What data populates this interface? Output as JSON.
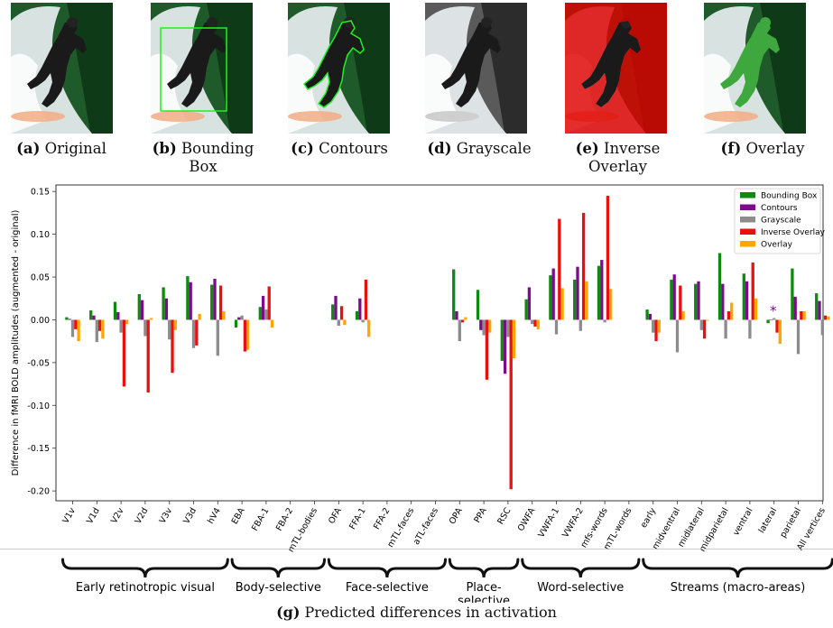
{
  "panels": [
    {
      "letter": "(a)",
      "label": "Original",
      "variant": "original"
    },
    {
      "letter": "(b)",
      "label": "Bounding Box",
      "variant": "bbox"
    },
    {
      "letter": "(c)",
      "label": "Contours",
      "variant": "contours"
    },
    {
      "letter": "(d)",
      "label": "Grayscale",
      "variant": "grayscale"
    },
    {
      "letter": "(e)",
      "label": "Inverse Overlay",
      "variant": "inverse"
    },
    {
      "letter": "(f)",
      "label": "Overlay",
      "variant": "overlay"
    }
  ],
  "caption": {
    "letter": "(g)",
    "text": "Predicted differences in activation"
  },
  "chart_data": {
    "type": "bar",
    "ylabel": "Difference in fMRI BOLD amplitudes (augmented - original)",
    "ylim": [
      -0.21,
      0.16
    ],
    "yticks": [
      "0.15",
      "0.10",
      "0.05",
      "0.00",
      "-0.05",
      "-0.10",
      "-0.15",
      "-0.20"
    ],
    "legend_position": "top-right",
    "categories": [
      "V1v",
      "V1d",
      "V2v",
      "V2d",
      "V3v",
      "V3d",
      "hV4",
      "EBA",
      "FBA-1",
      "FBA-2",
      "mTL-bodies",
      "OFA",
      "FFA-1",
      "FFA-2",
      "mTL-faces",
      "aTL-faces",
      "OPA",
      "PPA",
      "RSC",
      "OWFA",
      "VWFA-1",
      "VWFA-2",
      "mfs-words",
      "mTL-words",
      "early",
      "midventral",
      "midlateral",
      "midparietal",
      "ventral",
      "lateral",
      "parietal",
      "All vertices"
    ],
    "series": [
      {
        "name": "Bounding Box",
        "color": "#118811",
        "values": [
          0.003,
          0.011,
          0.021,
          0.03,
          0.038,
          0.051,
          0.041,
          -0.009,
          0.015,
          null,
          null,
          0.018,
          0.01,
          null,
          null,
          null,
          0.059,
          0.035,
          -0.048,
          0.024,
          0.052,
          0.047,
          0.063,
          null,
          0.012,
          0.047,
          0.042,
          0.078,
          0.054,
          -0.004,
          0.06,
          0.031
        ]
      },
      {
        "name": "Contours",
        "color": "#7b0d8a",
        "values": [
          0.001,
          0.005,
          0.009,
          0.023,
          0.025,
          0.044,
          0.048,
          0.003,
          0.028,
          null,
          null,
          0.028,
          0.025,
          null,
          null,
          null,
          0.01,
          -0.012,
          -0.063,
          0.038,
          0.06,
          0.062,
          0.07,
          null,
          0.007,
          0.053,
          0.045,
          0.042,
          0.045,
          0.0,
          0.027,
          0.022
        ]
      },
      {
        "name": "Grayscale",
        "color": "#8c8c8c",
        "values": [
          -0.02,
          -0.026,
          -0.015,
          -0.019,
          -0.023,
          -0.033,
          -0.042,
          0.005,
          0.012,
          null,
          null,
          -0.007,
          -0.003,
          null,
          null,
          null,
          -0.025,
          -0.018,
          -0.02,
          -0.005,
          -0.017,
          -0.013,
          -0.003,
          null,
          -0.015,
          -0.038,
          -0.012,
          -0.022,
          -0.022,
          0.002,
          -0.04,
          -0.018
        ]
      },
      {
        "name": "Inverse Overlay",
        "color": "#e81010",
        "values": [
          -0.011,
          -0.013,
          -0.078,
          -0.085,
          -0.062,
          -0.03,
          0.04,
          -0.037,
          0.039,
          null,
          null,
          0.016,
          0.047,
          null,
          null,
          null,
          -0.003,
          -0.07,
          -0.198,
          -0.008,
          0.118,
          0.125,
          0.145,
          null,
          -0.025,
          0.04,
          -0.022,
          0.01,
          0.067,
          -0.015,
          0.01,
          0.005
        ]
      },
      {
        "name": "Overlay",
        "color": "#ffa500",
        "values": [
          -0.025,
          -0.022,
          -0.005,
          0.002,
          -0.012,
          0.007,
          0.01,
          -0.035,
          -0.009,
          null,
          null,
          -0.006,
          -0.02,
          null,
          null,
          null,
          0.003,
          -0.015,
          -0.045,
          -0.011,
          0.037,
          0.045,
          0.036,
          null,
          -0.015,
          0.01,
          -0.001,
          0.02,
          0.025,
          -0.028,
          0.01,
          0.004
        ]
      }
    ],
    "annotations": [
      {
        "category": "lateral",
        "text": "*"
      }
    ],
    "groups": [
      {
        "label": "Early retinotropic visual",
        "from": 0,
        "to": 6
      },
      {
        "label": "Body-selective",
        "from": 7,
        "to": 10
      },
      {
        "label": "Face-selective",
        "from": 11,
        "to": 15
      },
      {
        "label": "Place-selective",
        "from": 16,
        "to": 18
      },
      {
        "label": "Word-selective",
        "from": 19,
        "to": 23
      },
      {
        "label": "Streams (macro-areas)",
        "from": 24,
        "to": 31
      }
    ]
  }
}
